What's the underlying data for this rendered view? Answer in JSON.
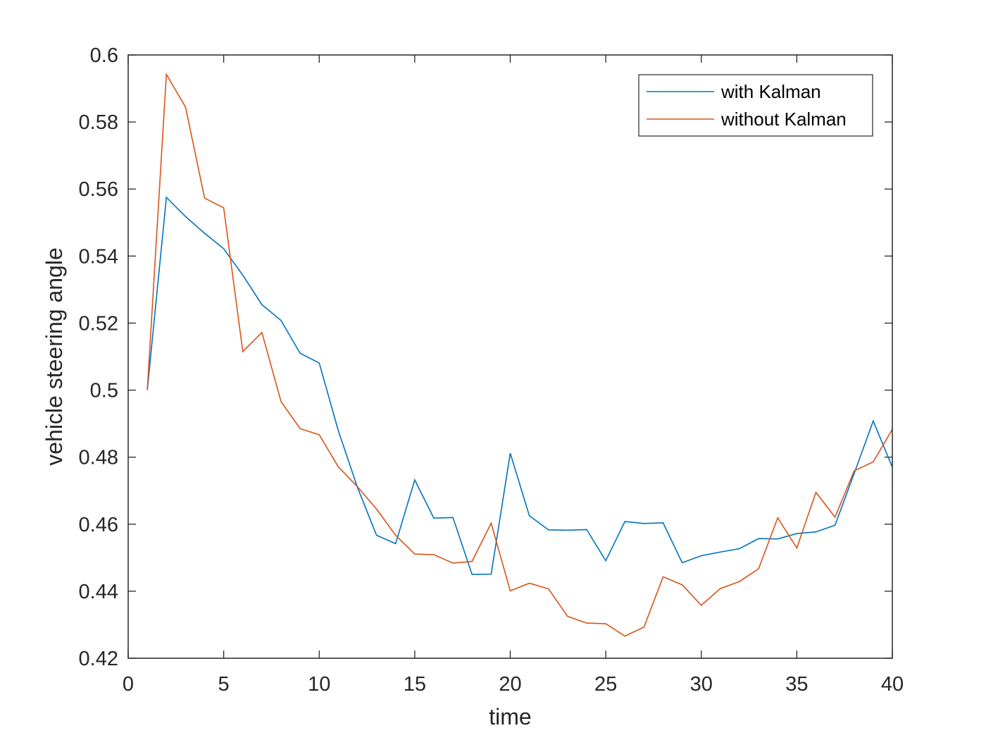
{
  "chart_data": {
    "type": "line",
    "title": "",
    "xlabel": "time",
    "ylabel": "vehicle steering angle",
    "xlim": [
      0,
      40
    ],
    "ylim": [
      0.42,
      0.6
    ],
    "xticks": [
      0,
      5,
      10,
      15,
      20,
      25,
      30,
      35,
      40
    ],
    "yticks": [
      0.42,
      0.44,
      0.46,
      0.48,
      0.5,
      0.52,
      0.54,
      0.56,
      0.58,
      0.6
    ],
    "xtick_labels": [
      "0",
      "5",
      "10",
      "15",
      "20",
      "25",
      "30",
      "35",
      "40"
    ],
    "ytick_labels": [
      "0.42",
      "0.44",
      "0.46",
      "0.48",
      "0.5",
      "0.52",
      "0.54",
      "0.56",
      "0.58",
      "0.6"
    ],
    "grid": false,
    "legend_position": "top-right",
    "x": [
      1,
      2,
      3,
      4,
      5,
      6,
      7,
      8,
      9,
      10,
      11,
      12,
      13,
      14,
      15,
      16,
      17,
      18,
      19,
      20,
      21,
      22,
      23,
      24,
      25,
      26,
      27,
      28,
      29,
      30,
      31,
      32,
      33,
      34,
      35,
      36,
      37,
      38,
      39,
      40
    ],
    "series": [
      {
        "name": "with Kalman",
        "color": "#0072BD",
        "values": [
          0.5,
          0.5575,
          0.5518,
          0.5468,
          0.5422,
          0.5343,
          0.5255,
          0.5208,
          0.511,
          0.5081,
          0.4879,
          0.471,
          0.4567,
          0.4542,
          0.4732,
          0.4618,
          0.462,
          0.445,
          0.4451,
          0.4812,
          0.4625,
          0.4583,
          0.4582,
          0.4584,
          0.4491,
          0.4608,
          0.4602,
          0.4604,
          0.4485,
          0.4506,
          0.4517,
          0.4527,
          0.4557,
          0.4556,
          0.4572,
          0.4577,
          0.4597,
          0.4751,
          0.4908,
          0.477
        ]
      },
      {
        "name": "without Kalman",
        "color": "#D95319",
        "values": [
          0.5,
          0.5942,
          0.5845,
          0.5573,
          0.5544,
          0.5115,
          0.5172,
          0.4966,
          0.4885,
          0.4867,
          0.4771,
          0.4712,
          0.4645,
          0.4567,
          0.4511,
          0.4509,
          0.4484,
          0.4489,
          0.4603,
          0.4401,
          0.4424,
          0.4407,
          0.4325,
          0.4305,
          0.4303,
          0.4266,
          0.4293,
          0.4443,
          0.4419,
          0.4358,
          0.4408,
          0.4429,
          0.4467,
          0.4619,
          0.4529,
          0.4695,
          0.4621,
          0.4759,
          0.4786,
          0.4883
        ]
      }
    ]
  }
}
